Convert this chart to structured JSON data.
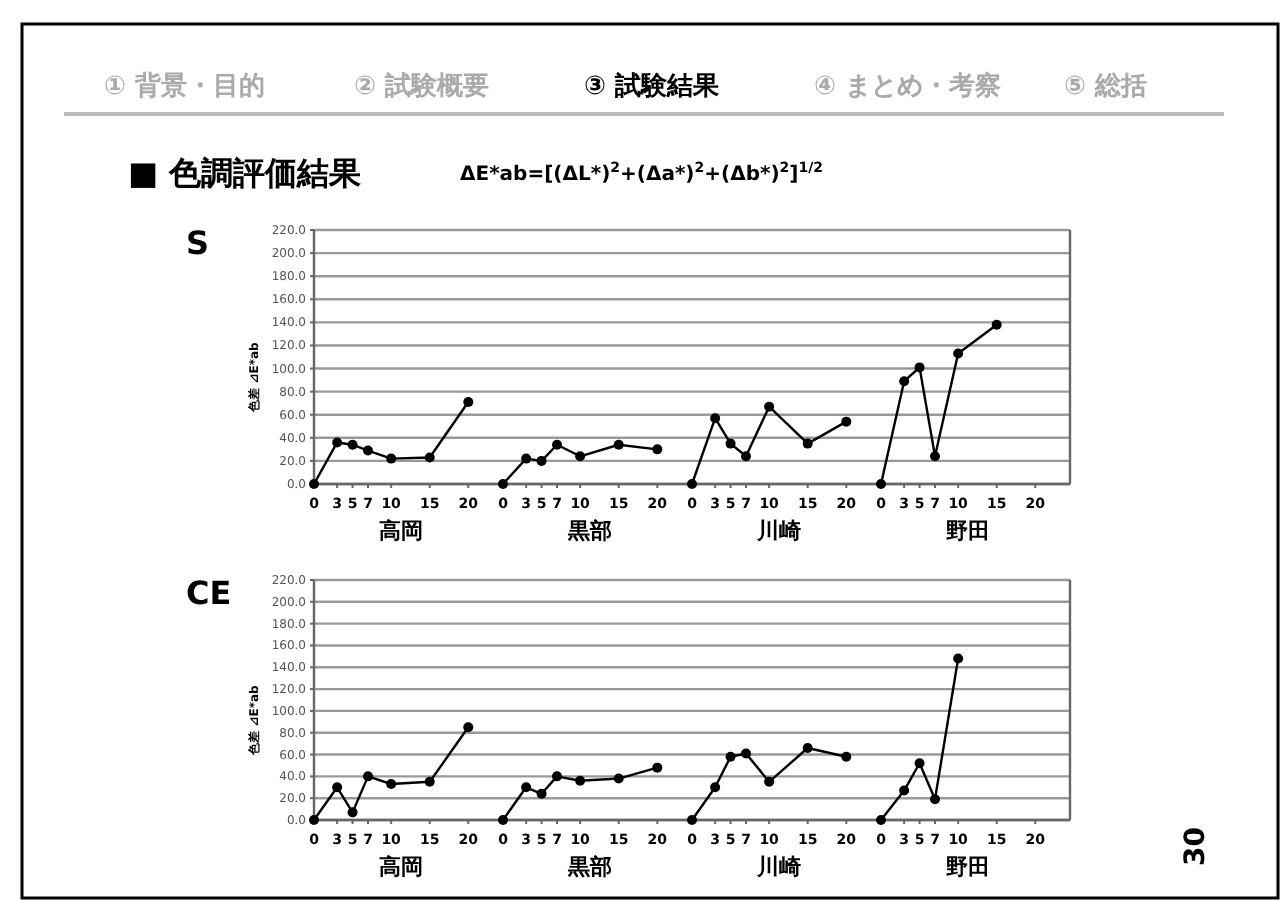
{
  "chart_data": [
    {
      "type": "line",
      "title": "S",
      "ylabel": "色差 ⊿E*ab",
      "xlabel": "高岡",
      "color": "#000000",
      "marker": "circle",
      "grid": "y",
      "x": [
        0,
        3,
        5,
        7,
        10,
        15,
        20
      ],
      "values": [
        0,
        36,
        34,
        29,
        22,
        23,
        71
      ],
      "xlim": [
        0,
        24.5
      ],
      "xticks": [
        0,
        3,
        5,
        7,
        10,
        15,
        20
      ],
      "ylim": [
        0,
        220
      ],
      "yticks": [
        {
          "value": 0,
          "label": "0.0"
        },
        {
          "value": 20,
          "label": "20.0"
        },
        {
          "value": 40,
          "label": "40.0"
        },
        {
          "value": 60,
          "label": "60.0"
        },
        {
          "value": 80,
          "label": "80.0"
        },
        {
          "value": 100,
          "label": "100.0"
        },
        {
          "value": 120,
          "label": "120.0"
        },
        {
          "value": 140,
          "label": "140.0"
        },
        {
          "value": 160,
          "label": "160.0"
        },
        {
          "value": 180,
          "label": "180.0"
        },
        {
          "value": 200,
          "label": "200.0"
        },
        {
          "value": 220,
          "label": "220.0"
        }
      ],
      "annotations": [
        "① 背景・目的",
        "② 試験概要",
        "③ 試験結果",
        "④ まとめ・考察",
        "⑤ 総括",
        "■ 色調評価結果",
        "ΔE*ab=[(ΔL*)$^{2}$+(Δa*)$^{2}$+(Δb*)$^{2}$]$^{1/2}$",
        "30"
      ]
    },
    {
      "type": "line",
      "xlabel": "黒部",
      "color": "#000000",
      "marker": "circle",
      "grid": "y",
      "tick_labels": "x",
      "x": [
        0,
        3,
        5,
        7,
        10,
        15,
        20
      ],
      "values": [
        0,
        22,
        20,
        34,
        24,
        34,
        30
      ],
      "xlim": [
        0,
        24.5
      ],
      "xticks": [
        0,
        3,
        5,
        7,
        10,
        15,
        20
      ],
      "ylim": [
        0,
        220
      ]
    },
    {
      "type": "line",
      "xlabel": "川崎",
      "color": "#000000",
      "marker": "circle",
      "grid": "y",
      "tick_labels": "x",
      "x": [
        0,
        3,
        5,
        7,
        10,
        15,
        20
      ],
      "values": [
        0,
        57,
        35,
        24,
        67,
        35,
        54
      ],
      "xlim": [
        0,
        24.5
      ],
      "xticks": [
        0,
        3,
        5,
        7,
        10,
        15,
        20
      ],
      "ylim": [
        0,
        220
      ]
    },
    {
      "type": "line",
      "xlabel": "野田",
      "color": "#000000",
      "marker": "circle",
      "grid": "y",
      "tick_labels": "x",
      "x": [
        0,
        3,
        5,
        7,
        10,
        15
      ],
      "values": [
        0,
        89,
        101,
        24,
        113,
        138
      ],
      "xlim": [
        0,
        24.5
      ],
      "xticks": [
        0,
        3,
        5,
        7,
        10,
        15,
        20
      ],
      "ylim": [
        0,
        220
      ]
    },
    {
      "type": "line",
      "title": "CE",
      "ylabel": "色差 ⊿E*ab",
      "xlabel": "高岡",
      "color": "#000000",
      "marker": "circle",
      "grid": "y",
      "x": [
        0,
        3,
        5,
        7,
        10,
        15,
        20
      ],
      "values": [
        0,
        30,
        7,
        40,
        33,
        35,
        85
      ],
      "xlim": [
        0,
        24.5
      ],
      "xticks": [
        0,
        3,
        5,
        7,
        10,
        15,
        20
      ],
      "ylim": [
        0,
        220
      ],
      "yticks": [
        {
          "value": 0,
          "label": "0.0"
        },
        {
          "value": 20,
          "label": "20.0"
        },
        {
          "value": 40,
          "label": "40.0"
        },
        {
          "value": 60,
          "label": "60.0"
        },
        {
          "value": 80,
          "label": "80.0"
        },
        {
          "value": 100,
          "label": "100.0"
        },
        {
          "value": 120,
          "label": "120.0"
        },
        {
          "value": 140,
          "label": "140.0"
        },
        {
          "value": 160,
          "label": "160.0"
        },
        {
          "value": 180,
          "label": "180.0"
        },
        {
          "value": 200,
          "label": "200.0"
        },
        {
          "value": 220,
          "label": "220.0"
        }
      ]
    },
    {
      "type": "line",
      "xlabel": "黒部",
      "color": "#000000",
      "marker": "circle",
      "grid": "y",
      "tick_labels": "x",
      "x": [
        0,
        3,
        5,
        7,
        10,
        15,
        20
      ],
      "values": [
        0,
        30,
        24,
        40,
        36,
        38,
        48
      ],
      "xlim": [
        0,
        24.5
      ],
      "xticks": [
        0,
        3,
        5,
        7,
        10,
        15,
        20
      ],
      "ylim": [
        0,
        220
      ]
    },
    {
      "type": "line",
      "xlabel": "川崎",
      "color": "#000000",
      "marker": "circle",
      "grid": "y",
      "tick_labels": "x",
      "x": [
        0,
        3,
        5,
        7,
        10,
        15,
        20
      ],
      "values": [
        0,
        30,
        58,
        61,
        35,
        66,
        58
      ],
      "xlim": [
        0,
        24.5
      ],
      "xticks": [
        0,
        3,
        5,
        7,
        10,
        15,
        20
      ],
      "ylim": [
        0,
        220
      ]
    },
    {
      "type": "line",
      "xlabel": "野田",
      "color": "#000000",
      "marker": "circle",
      "grid": "y",
      "tick_labels": "x",
      "x": [
        0,
        3,
        5,
        7,
        10
      ],
      "values": [
        0,
        27,
        52,
        19,
        148
      ],
      "xlim": [
        0,
        24.5
      ],
      "xticks": [
        0,
        3,
        5,
        7,
        10,
        15,
        20
      ],
      "ylim": [
        0,
        220
      ]
    }
  ]
}
